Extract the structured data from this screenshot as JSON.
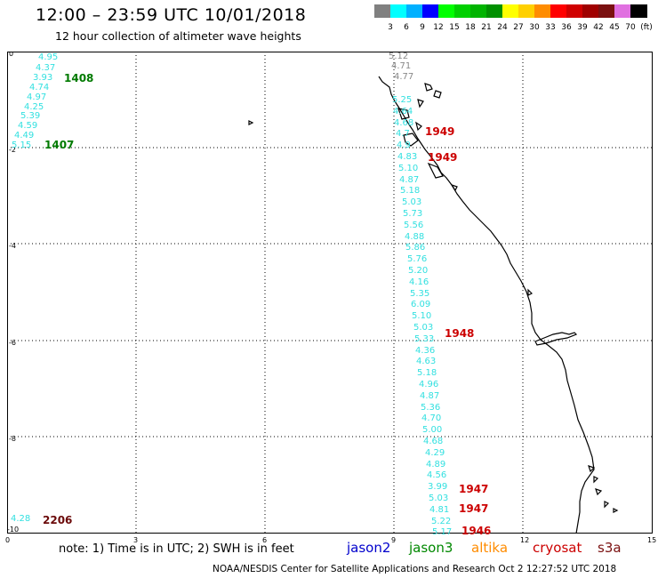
{
  "header": {
    "title": "12:00 – 23:59 UTC 10/01/2018",
    "subtitle": "12 hour collection of altimeter wave heights"
  },
  "legend": {
    "unit": "(ft)",
    "swatches": [
      {
        "label": "",
        "color": "#808080"
      },
      {
        "label": "3",
        "color": "#00ffff"
      },
      {
        "label": "6",
        "color": "#00b0ff"
      },
      {
        "label": "9",
        "color": "#0000ff"
      },
      {
        "label": "12",
        "color": "#00ff00"
      },
      {
        "label": "15",
        "color": "#00d000"
      },
      {
        "label": "18",
        "color": "#00b400"
      },
      {
        "label": "21",
        "color": "#009000"
      },
      {
        "label": "24",
        "color": "#ffff00"
      },
      {
        "label": "27",
        "color": "#ffd000"
      },
      {
        "label": "30",
        "color": "#ff8c00"
      },
      {
        "label": "33",
        "color": "#ff0000"
      },
      {
        "label": "36",
        "color": "#d00000"
      },
      {
        "label": "39",
        "color": "#a00000"
      },
      {
        "label": "42",
        "color": "#7a1010"
      },
      {
        "label": "45",
        "color": "#e070e0"
      },
      {
        "label": "70",
        "color": "#000000"
      }
    ]
  },
  "axes": {
    "y_ticks": [
      "0",
      "-2",
      "-4",
      "-6",
      "-8",
      "-10"
    ],
    "x_ticks": [
      "0",
      "3",
      "6",
      "9",
      "12",
      "15"
    ]
  },
  "readings": [
    {
      "track": "west",
      "values": [
        "4.95",
        "4.37",
        "3.93",
        "4.74",
        "4.97",
        "4.25",
        "5.39",
        "4.59",
        "4.49",
        "5.15"
      ],
      "color": "#33e0e0"
    },
    {
      "track": "south-west",
      "values": [
        "4.28"
      ],
      "color": "#33e0e0"
    },
    {
      "track": "coastal-north",
      "values": [
        "5.12",
        "4.71",
        "4.77"
      ],
      "color": "#888888"
    },
    {
      "track": "coastal",
      "values": [
        "5.25",
        "4.64",
        "4.68",
        "4.7",
        "4.9",
        "4.83",
        "5.10",
        "4.87",
        "5.18",
        "5.03",
        "5.73",
        "5.56",
        "4.88",
        "5.86",
        "5.76",
        "5.20",
        "4.16",
        "5.35",
        "6.09",
        "5.10",
        "5.03",
        "5.33",
        "4.36",
        "4.63",
        "5.18",
        "4.96",
        "4.87",
        "5.36",
        "4.70",
        "5.00",
        "4.68",
        "4.29",
        "4.89",
        "4.56",
        "3.99",
        "5.03",
        "4.81",
        "5.22",
        "5.17"
      ],
      "color": "#33e0e0"
    }
  ],
  "time_labels": [
    {
      "text": "1408",
      "color": "#007a00"
    },
    {
      "text": "1407",
      "color": "#007a00"
    },
    {
      "text": "2206",
      "color": "#6b0a0a"
    },
    {
      "text": "1949",
      "color": "#cc0000"
    },
    {
      "text": "1949",
      "color": "#cc0000"
    },
    {
      "text": "1948",
      "color": "#cc0000"
    },
    {
      "text": "1947",
      "color": "#cc0000"
    },
    {
      "text": "1947",
      "color": "#cc0000"
    },
    {
      "text": "1946",
      "color": "#cc0000"
    }
  ],
  "footer": {
    "note": "note: 1) Time is in UTC; 2) SWH is in feet",
    "satellites": [
      {
        "name": "jason2",
        "color": "#0000cc"
      },
      {
        "name": "jason3",
        "color": "#008800"
      },
      {
        "name": "altika",
        "color": "#ff8c00"
      },
      {
        "name": "cryosat",
        "color": "#cc0000"
      },
      {
        "name": "s3a",
        "color": "#7a1010"
      }
    ],
    "credit": "NOAA/NESDIS Center for Satellite Applications and Research   Oct  2 12:27:52 UTC 2018"
  }
}
